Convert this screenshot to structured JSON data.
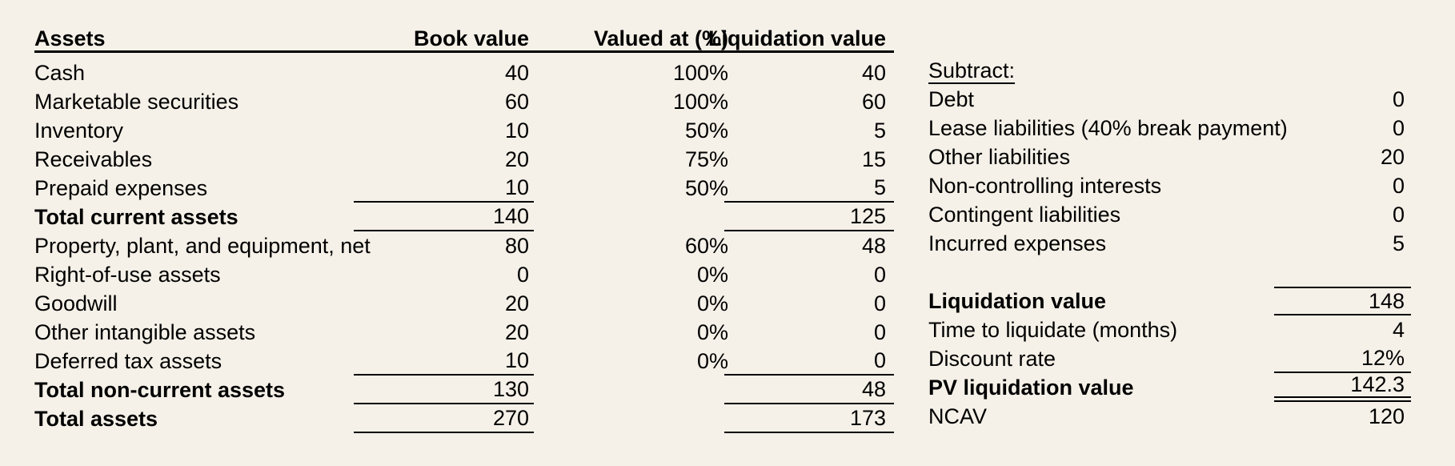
{
  "page": {
    "background": "#f5f1e8",
    "text_color": "#000000",
    "rule_color": "#000000"
  },
  "left_table": {
    "headers": {
      "assets": "Assets",
      "book": "Book value",
      "pct": "Valued at (%)",
      "liq": "Liquidation value"
    },
    "rows": [
      {
        "label": "Cash",
        "book": "40",
        "pct": "100%",
        "liq": "40",
        "cls": ""
      },
      {
        "label": "Marketable securities",
        "book": "60",
        "pct": "100%",
        "liq": "60",
        "cls": ""
      },
      {
        "label": "Inventory",
        "book": "10",
        "pct": "50%",
        "liq": "5",
        "cls": ""
      },
      {
        "label": "Receivables",
        "book": "20",
        "pct": "75%",
        "liq": "15",
        "cls": ""
      },
      {
        "label": "Prepaid expenses",
        "book": "10",
        "pct": "50%",
        "liq": "5",
        "cls": "u-bot"
      },
      {
        "label": "Total current assets",
        "book": "140",
        "pct": "",
        "liq": "125",
        "cls": "bold u-bot"
      },
      {
        "label": "Property, plant, and equipment, net",
        "book": "80",
        "pct": "60%",
        "liq": "48",
        "cls": ""
      },
      {
        "label": "Right-of-use assets",
        "book": "0",
        "pct": "0%",
        "liq": "0",
        "cls": ""
      },
      {
        "label": "Goodwill",
        "book": "20",
        "pct": "0%",
        "liq": "0",
        "cls": ""
      },
      {
        "label": "Other intangible assets",
        "book": "20",
        "pct": "0%",
        "liq": "0",
        "cls": ""
      },
      {
        "label": "Deferred tax assets",
        "book": "10",
        "pct": "0%",
        "liq": "0",
        "cls": "u-bot"
      },
      {
        "label": "Total non-current assets",
        "book": "130",
        "pct": "",
        "liq": "48",
        "cls": "bold u-bot"
      },
      {
        "label": "Total assets",
        "book": "270",
        "pct": "",
        "liq": "173",
        "cls": "bold u-bot"
      }
    ]
  },
  "right_table": {
    "rows": [
      {
        "label": "Subtract:",
        "value": "",
        "cls": "subhead"
      },
      {
        "label": "Debt",
        "value": "0",
        "cls": ""
      },
      {
        "label": "Lease liabilities (40% break payment)",
        "value": "0",
        "cls": ""
      },
      {
        "label": "Other liabilities",
        "value": "20",
        "cls": ""
      },
      {
        "label": "Non-controlling interests",
        "value": "0",
        "cls": ""
      },
      {
        "label": "Contingent liabilities",
        "value": "0",
        "cls": ""
      },
      {
        "label": "Incurred expenses",
        "value": "5",
        "cls": ""
      },
      {
        "label": "",
        "value": "",
        "cls": ""
      },
      {
        "label": "Liquidation value",
        "value": "148",
        "cls": "bold u-top u-bot"
      },
      {
        "label": "Time to liquidate (months)",
        "value": "4",
        "cls": ""
      },
      {
        "label": "Discount rate",
        "value": "12%",
        "cls": "u-bot"
      },
      {
        "label": "PV liquidation value",
        "value": "142.3",
        "cls": "bold u-dbl"
      },
      {
        "label": "NCAV",
        "value": "120",
        "cls": ""
      }
    ]
  }
}
